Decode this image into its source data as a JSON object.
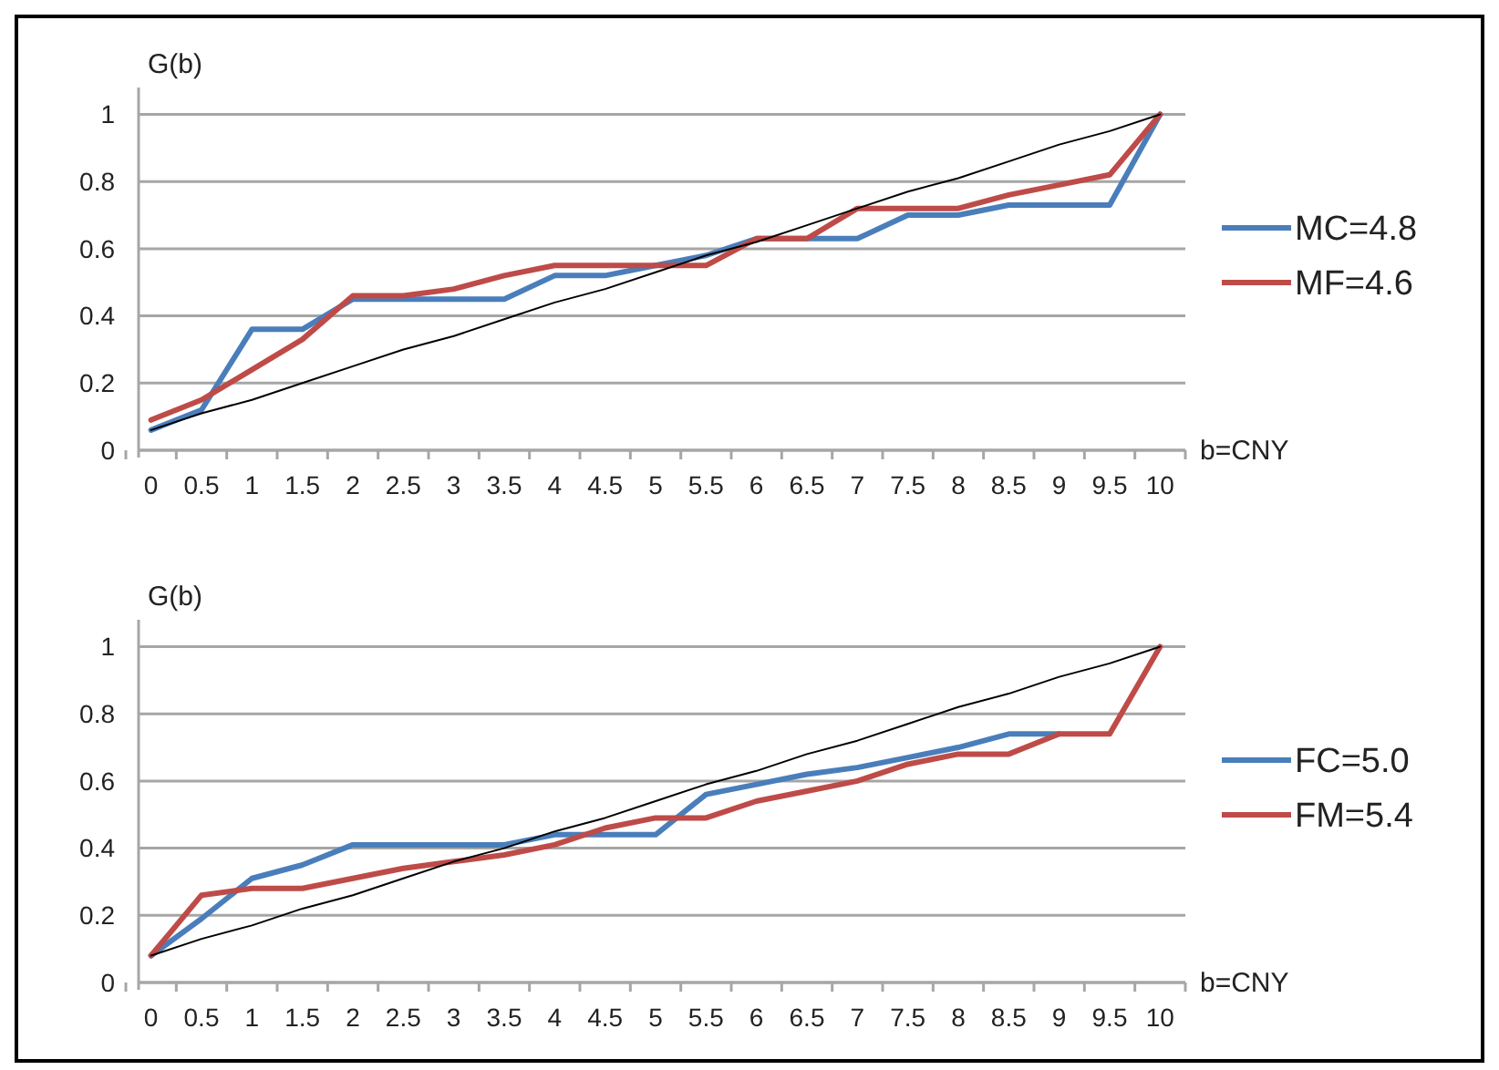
{
  "chart_data": [
    {
      "type": "line",
      "ylabel": "G(b)",
      "xlabel": "b=CNY",
      "categories": [
        "0",
        "0.5",
        "1",
        "1.5",
        "2",
        "2.5",
        "3",
        "3.5",
        "4",
        "4.5",
        "5",
        "5.5",
        "6",
        "6.5",
        "7",
        "7.5",
        "8",
        "8.5",
        "9",
        "9.5",
        "10"
      ],
      "ylim": [
        0,
        1.08
      ],
      "yticks": [
        0,
        0.2,
        0.4,
        0.6,
        0.8,
        1
      ],
      "grid": "y",
      "legend": "right",
      "marker": "none",
      "line_style": "solid",
      "series": [
        {
          "name": "MC=4.8",
          "color": "#4a7ebb",
          "values": [
            0.06,
            0.12,
            0.36,
            0.36,
            0.45,
            0.45,
            0.45,
            0.45,
            0.52,
            0.52,
            0.55,
            0.58,
            0.63,
            0.63,
            0.63,
            0.7,
            0.7,
            0.73,
            0.73,
            0.73,
            1
          ]
        },
        {
          "name": "MF=4.6",
          "color": "#be4b48",
          "values": [
            0.09,
            0.15,
            0.24,
            0.33,
            0.46,
            0.46,
            0.48,
            0.52,
            0.55,
            0.55,
            0.55,
            0.55,
            0.63,
            0.63,
            0.72,
            0.72,
            0.72,
            0.76,
            0.79,
            0.82,
            1
          ]
        },
        {
          "color": "#000000",
          "values": [
            0.06,
            0.11,
            0.15,
            0.2,
            0.25,
            0.3,
            0.34,
            0.39,
            0.44,
            0.48,
            0.53,
            0.58,
            0.62,
            0.67,
            0.72,
            0.77,
            0.81,
            0.86,
            0.91,
            0.95,
            1
          ]
        }
      ]
    },
    {
      "type": "line",
      "ylabel": "G(b)",
      "xlabel": "b=CNY",
      "categories": [
        "0",
        "0.5",
        "1",
        "1.5",
        "2",
        "2.5",
        "3",
        "3.5",
        "4",
        "4.5",
        "5",
        "5.5",
        "6",
        "6.5",
        "7",
        "7.5",
        "8",
        "8.5",
        "9",
        "9.5",
        "10"
      ],
      "ylim": [
        0,
        1.08
      ],
      "yticks": [
        0,
        0.2,
        0.4,
        0.6,
        0.8,
        1
      ],
      "grid": "y",
      "legend": "right",
      "marker": "none",
      "line_style": "solid",
      "series": [
        {
          "name": "FC=5.0",
          "color": "#4a7ebb",
          "values": [
            0.08,
            0.19,
            0.31,
            0.35,
            0.41,
            0.41,
            0.41,
            0.41,
            0.44,
            0.44,
            0.44,
            0.56,
            0.59,
            0.62,
            0.64,
            0.67,
            0.7,
            0.74,
            0.74,
            null,
            null
          ]
        },
        {
          "name": "FM=5.4",
          "color": "#be4b48",
          "values": [
            0.08,
            0.26,
            0.28,
            0.28,
            0.31,
            0.34,
            0.36,
            0.38,
            0.41,
            0.46,
            0.49,
            0.49,
            0.54,
            0.57,
            0.6,
            0.65,
            0.68,
            0.68,
            0.74,
            0.74,
            1
          ]
        },
        {
          "color": "#000000",
          "values": [
            0.08,
            0.13,
            0.17,
            0.22,
            0.26,
            0.31,
            0.36,
            0.4,
            0.45,
            0.49,
            0.54,
            0.59,
            0.63,
            0.68,
            0.72,
            0.77,
            0.82,
            0.86,
            0.91,
            0.95,
            1
          ]
        }
      ]
    }
  ]
}
